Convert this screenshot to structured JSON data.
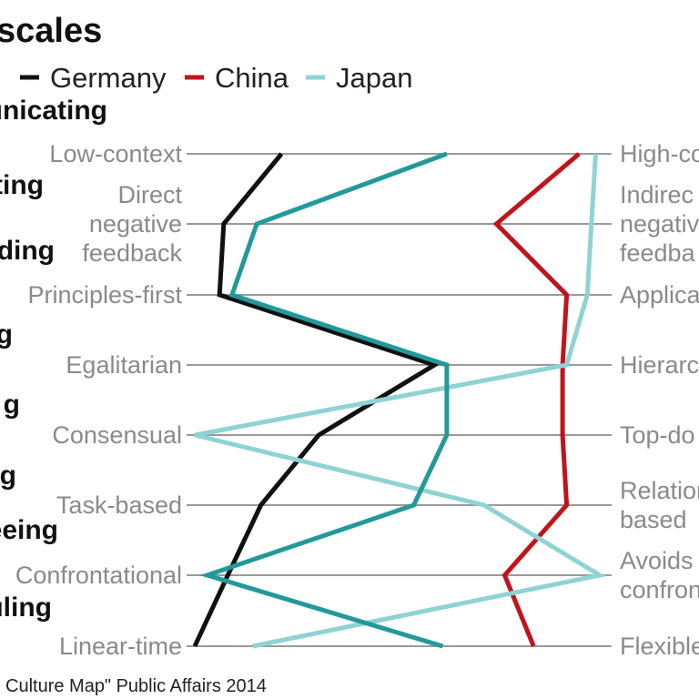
{
  "chart_data": {
    "type": "line",
    "title": "scales",
    "source": "Culture Map\" Public Affairs 2014",
    "legend_position": "top",
    "categories": [
      "unicating",
      "ting",
      "ding",
      "g",
      "g",
      "g",
      "eeing",
      "uling"
    ],
    "left_labels": [
      [
        "Low-context"
      ],
      [
        "Direct",
        "negative",
        "feedback"
      ],
      [
        "Principles-first"
      ],
      [
        "Egalitarian"
      ],
      [
        "Consensual"
      ],
      [
        "Task-based"
      ],
      [
        "Confrontational"
      ],
      [
        "Linear-time"
      ]
    ],
    "right_labels": [
      [
        "High-co"
      ],
      [
        "Indirec",
        "negativ",
        "feedba"
      ],
      [
        "Applica"
      ],
      [
        "Hierarc"
      ],
      [
        "Top-do"
      ],
      [
        "Relation",
        "based"
      ],
      [
        "Avoids",
        "confron"
      ],
      [
        "Flexible"
      ]
    ],
    "xlim": [
      0,
      10
    ],
    "series": [
      {
        "name": "Germany",
        "color": "#111111",
        "values": [
          2.1,
          0.7,
          0.6,
          5.8,
          3.0,
          1.6,
          0.8,
          0.0
        ]
      },
      {
        "name": "China",
        "color": "#c0141b",
        "values": [
          9.3,
          7.3,
          9.0,
          8.9,
          8.9,
          9.0,
          7.5,
          8.2
        ]
      },
      {
        "name": "Japan",
        "color": "#8fd3d3",
        "values": [
          9.7,
          9.6,
          9.5,
          9.0,
          0.0,
          7.0,
          9.8,
          1.4
        ]
      },
      {
        "name": "",
        "color": "#239999",
        "values": [
          6.1,
          1.5,
          0.9,
          6.1,
          6.1,
          5.3,
          0.3,
          6.0
        ]
      }
    ]
  }
}
